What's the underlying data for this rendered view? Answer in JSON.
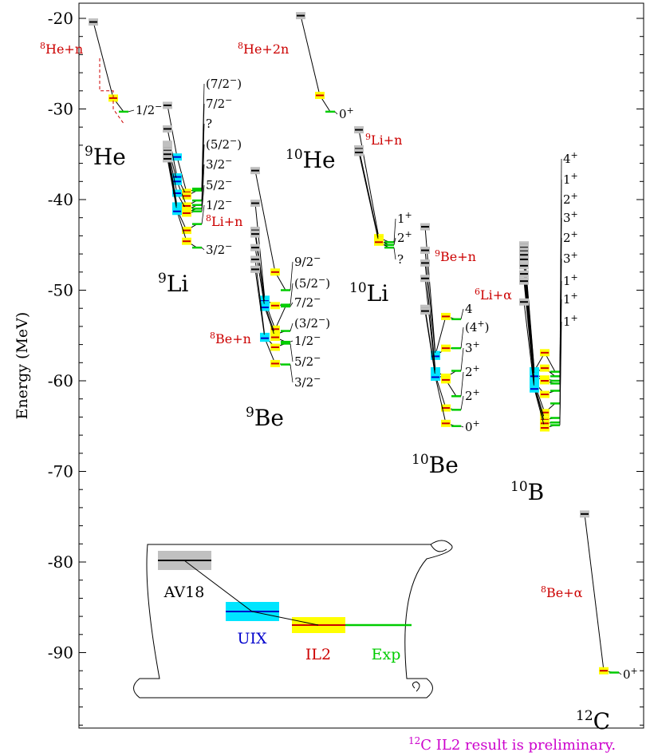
{
  "chart_data": {
    "type": "level-scheme",
    "ylabel": "Energy (MeV)",
    "ylim": [
      -98,
      -18
    ],
    "yticks": [
      -20,
      -30,
      -40,
      -50,
      -60,
      -70,
      -80,
      -90
    ],
    "colors": {
      "AV18": "#000000",
      "UIX": "#0000cc",
      "IL2": "#cc0000",
      "Exp": "#00cc00",
      "threshold": "#cc0000",
      "note": "#cc00cc"
    },
    "band_colors": {
      "AV18": "#c0c0c0",
      "UIX": "#00e5ff",
      "IL2": "#ffff00"
    },
    "nuclei": [
      {
        "id": "he9",
        "mass": "9",
        "symbol": "He",
        "x": 145,
        "levels": [
          {
            "label": "1/2−",
            "av18": -20.4,
            "uix": null,
            "il2": -28.8,
            "exp": -30.3
          }
        ],
        "threshold": {
          "label_mass": "8",
          "label": "He+n",
          "path": [
            [
              -24.4,
              -28.0,
              -30.0,
              -31.6
            ]
          ]
        }
      },
      {
        "id": "li9",
        "mass": "9",
        "symbol": "Li",
        "x": 230,
        "levels": [
          {
            "label": "(7/2−)",
            "av18": -29.6,
            "uix": -35.3,
            "il2": -39.2,
            "exp": -38.8
          },
          {
            "label": "7/2−",
            "av18": -32.2,
            "uix": -37.5,
            "il2": -39.6,
            "exp": -39.0
          },
          {
            "label": "?",
            "av18": -33.9,
            "uix": -38.0,
            "il2": -40.7,
            "exp": -40.1
          },
          {
            "label": "(5/2−)",
            "av18": -34.1,
            "uix": -39.3,
            "il2": -41.2,
            "exp": -40.6
          },
          {
            "label": "3/2−",
            "av18": -34.3,
            "uix": -40.7,
            "il2": -41.4,
            "exp": -41.0
          },
          {
            "label": "5/2−",
            "av18": -34.6,
            "uix": -40.9,
            "il2": -41.5,
            "exp": -41.3
          },
          {
            "label": "1/2−",
            "av18": -35.0,
            "uix": -41.1,
            "il2": -43.4,
            "exp": -42.7
          },
          {
            "label": "3/2−",
            "av18": -35.5,
            "uix": -41.3,
            "il2": -44.6,
            "exp": -45.3
          }
        ],
        "threshold": {
          "label_mass": "8",
          "label": "Li+n"
        }
      },
      {
        "id": "he10",
        "mass": "10",
        "symbol": "He",
        "x": 405,
        "levels": [
          {
            "label": "0+",
            "av18": -19.7,
            "uix": null,
            "il2": -28.5,
            "exp": -30.3
          }
        ],
        "threshold": {
          "label_mass": "8",
          "label": "He+2n"
        }
      },
      {
        "id": "be9",
        "mass": "9",
        "symbol": "Be",
        "x": 345,
        "levels": [
          {
            "label": "9/2−",
            "av18": -36.8,
            "uix": null,
            "il2": -48.0,
            "exp": -50.0
          },
          {
            "label": "(5/2−)",
            "av18": -40.4,
            "uix": -51.0,
            "il2": -51.7,
            "exp": -51.6
          },
          {
            "label": "7/2−",
            "av18": -43.4,
            "uix": -51.2,
            "il2": -54.3,
            "exp": -51.8
          },
          {
            "label": "(3/2−)",
            "av18": -43.8,
            "uix": -51.6,
            "il2": -54.9,
            "exp": -54.5
          },
          {
            "label": "1/2−",
            "av18": -45.3,
            "uix": -51.9,
            "il2": -55.2,
            "exp": -55.7
          },
          {
            "label": "5/2−",
            "av18": -46.6,
            "uix": -55.1,
            "il2": -56.3,
            "exp": -55.9
          },
          {
            "label": "3/2−",
            "av18": -47.7,
            "uix": -55.3,
            "il2": -58.1,
            "exp": -58.2
          }
        ],
        "threshold": {
          "label_mass": "8",
          "label": "Be+n"
        }
      },
      {
        "id": "li10",
        "mass": "10",
        "symbol": "Li",
        "x": 475,
        "levels": [
          {
            "label": "1+",
            "av18": -32.3,
            "uix": null,
            "il2": -44.2,
            "exp": -44.7
          },
          {
            "label": "2+",
            "av18": -34.4,
            "uix": null,
            "il2": -44.5,
            "exp": -45.0
          },
          {
            "label": "?",
            "av18": -34.8,
            "uix": null,
            "il2": -44.7,
            "exp": -45.3
          }
        ],
        "threshold": {
          "label_mass": "9",
          "label": "Li+n"
        }
      },
      {
        "id": "be10",
        "mass": "10",
        "symbol": "Be",
        "x": 555,
        "levels": [
          {
            "label": "4",
            "av18": -43.0,
            "uix": -57.1,
            "il2": -52.9,
            "exp": -53.2
          },
          {
            "label": "(4+)",
            "av18": -45.6,
            "uix": -57.3,
            "il2": -56.4,
            "exp": -56.4
          },
          {
            "label": "3+",
            "av18": -47.0,
            "uix": -58.9,
            "il2": -59.6,
            "exp": -58.9
          },
          {
            "label": "2+",
            "av18": -48.7,
            "uix": -59.2,
            "il2": -59.9,
            "exp": -61.7
          },
          {
            "label": "2+",
            "av18": -52.0,
            "uix": -59.4,
            "il2": -63.0,
            "exp": -63.2
          },
          {
            "label": "0+",
            "av18": -52.3,
            "uix": -59.6,
            "il2": -64.7,
            "exp": -65.0
          }
        ],
        "threshold": {
          "label_mass": "9",
          "label": "Be+n"
        }
      },
      {
        "id": "b10",
        "mass": "10",
        "symbol": "B",
        "x": 685,
        "levels": [
          {
            "label": "4+",
            "av18": -45.0,
            "uix": -58.9,
            "il2": -56.9,
            "exp": -59.0
          },
          {
            "label": "1+",
            "av18": -45.3,
            "uix": -59.1,
            "il2": -58.6,
            "exp": -59.5
          },
          {
            "label": "2+",
            "av18": -45.7,
            "uix": -59.2,
            "il2": -59.8,
            "exp": -60.0
          },
          {
            "label": "3+",
            "av18": -46.1,
            "uix": -59.5,
            "il2": -60.0,
            "exp": -60.3
          },
          {
            "label": "2+",
            "av18": -46.6,
            "uix": -60.1,
            "il2": -61.5,
            "exp": -61.1
          },
          {
            "label": "3+",
            "av18": -47.3,
            "uix": -60.3,
            "il2": -63.5,
            "exp": -62.5
          },
          {
            "label": "1+",
            "av18": -48.2,
            "uix": -60.5,
            "il2": -64.3,
            "exp": -64.1
          },
          {
            "label": "1+",
            "av18": -49.0,
            "uix": -60.7,
            "il2": -64.7,
            "exp": -64.6
          },
          {
            "label": "1+",
            "av18": -51.3,
            "uix": -60.9,
            "il2": -65.2,
            "exp": -64.9
          }
        ],
        "threshold": {
          "label_mass": "6",
          "label": "Li+α"
        }
      },
      {
        "id": "c12",
        "mass": "12",
        "symbol": "C",
        "x": 745,
        "levels": [
          {
            "label": "0+",
            "av18": -74.7,
            "uix": null,
            "il2": -92.0,
            "exp": -92.2
          }
        ],
        "threshold": {
          "label_mass": "8",
          "label": "Be+α"
        }
      }
    ],
    "legend": {
      "av18": "AV18",
      "uix": "UIX",
      "il2": "IL2",
      "exp": "Exp"
    },
    "note": {
      "mass": "12",
      "text": "C IL2 result is preliminary."
    }
  }
}
